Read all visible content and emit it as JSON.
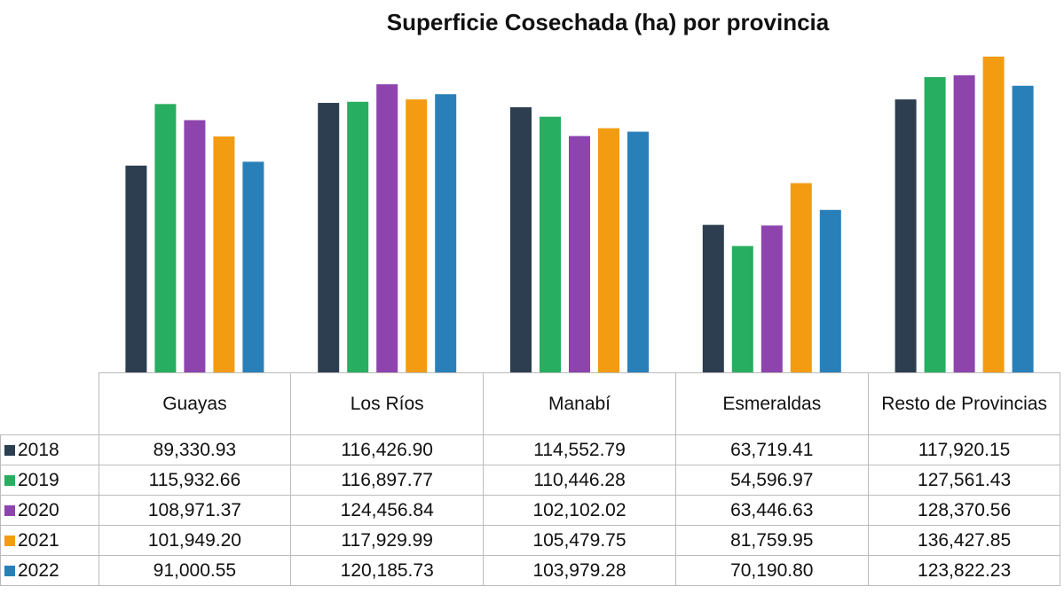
{
  "chart_data": {
    "type": "bar",
    "title": "Superficie Cosechada (ha) por provincia",
    "categories": [
      "Guayas",
      "Los Ríos",
      "Manabí",
      "Esmeraldas",
      "Resto de Provincias"
    ],
    "ylim": [
      0,
      140000
    ],
    "series": [
      {
        "name": "2018",
        "color": "#2c3e50",
        "values": [
          89330.93,
          116426.9,
          114552.79,
          63719.41,
          117920.15
        ],
        "value_labels": [
          "89,330.93",
          "116,426.90",
          "114,552.79",
          "63,719.41",
          "117,920.15"
        ]
      },
      {
        "name": "2019",
        "color": "#27ae60",
        "values": [
          115932.66,
          116897.77,
          110446.28,
          54596.97,
          127561.43
        ],
        "value_labels": [
          "115,932.66",
          "116,897.77",
          "110,446.28",
          "54,596.97",
          "127,561.43"
        ]
      },
      {
        "name": "2020",
        "color": "#8e44ad",
        "values": [
          108971.37,
          124456.84,
          102102.02,
          63446.63,
          128370.56
        ],
        "value_labels": [
          "108,971.37",
          "124,456.84",
          "102,102.02",
          "63,446.63",
          "128,370.56"
        ]
      },
      {
        "name": "2021",
        "color": "#f39c12",
        "values": [
          101949.2,
          117929.99,
          105479.75,
          81759.95,
          136427.85
        ],
        "value_labels": [
          "101,949.20",
          "117,929.99",
          "105,479.75",
          "81,759.95",
          "136,427.85"
        ]
      },
      {
        "name": "2022",
        "color": "#2980b9",
        "values": [
          91000.55,
          120185.73,
          103979.28,
          70190.8,
          123822.23
        ],
        "value_labels": [
          "91,000.55",
          "120,185.73",
          "103,979.28",
          "70,190.80",
          "123,822.23"
        ]
      }
    ]
  }
}
